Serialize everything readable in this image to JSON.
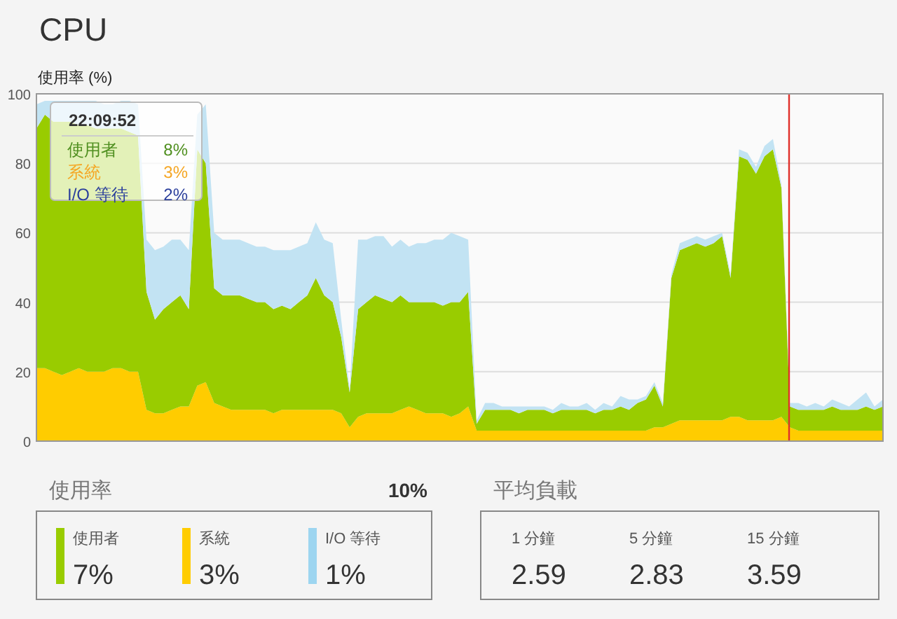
{
  "chart_data": [
    {
      "type": "area",
      "title": "CPU",
      "ylabel": "使用率 (%)",
      "stacked": true,
      "ylim": [
        0,
        100
      ],
      "yticks": [
        0,
        20,
        40,
        60,
        80,
        100
      ],
      "grid": "y",
      "tick_labels": "y",
      "categories": [
        null,
        null,
        null,
        null,
        null,
        null,
        null,
        null,
        null,
        null,
        null,
        null,
        null,
        null,
        null,
        null,
        null,
        null,
        null,
        null,
        null,
        null,
        null,
        null,
        null,
        null,
        null,
        null,
        null,
        null,
        null,
        null,
        null,
        null,
        null,
        null,
        null,
        null,
        null,
        null,
        null,
        null,
        null,
        null,
        null,
        null,
        null,
        null,
        null,
        null,
        null,
        null,
        null,
        null,
        null,
        null,
        null,
        null,
        null,
        null,
        null,
        null,
        null,
        null,
        null,
        null,
        null,
        null,
        null,
        null,
        null,
        null,
        null,
        null,
        null,
        null,
        null,
        null,
        null,
        null,
        null,
        null,
        null,
        null,
        null,
        null,
        null,
        null,
        null,
        null,
        null,
        null,
        null,
        null,
        null,
        null,
        null,
        null,
        null,
        null,
        null
      ],
      "series": [
        {
          "color": "#ffcc00",
          "values": [
            21,
            21,
            20,
            19,
            20,
            21,
            20,
            20,
            20,
            21,
            21,
            20,
            20,
            9,
            8,
            8,
            9,
            10,
            10,
            16,
            17,
            11,
            10,
            9,
            9,
            9,
            9,
            9,
            8,
            9,
            9,
            9,
            9,
            9,
            9,
            9,
            8,
            4,
            7,
            8,
            8,
            8,
            8,
            9,
            10,
            9,
            8,
            8,
            8,
            7,
            8,
            10,
            3,
            3,
            3,
            3,
            3,
            3,
            3,
            3,
            3,
            3,
            3,
            3,
            3,
            3,
            3,
            3,
            3,
            3,
            3,
            3,
            3,
            4,
            4,
            5,
            6,
            6,
            6,
            6,
            6,
            6,
            7,
            7,
            6,
            6,
            6,
            6,
            7,
            4,
            3,
            3,
            3,
            3,
            3,
            3,
            3,
            3,
            3,
            3,
            3
          ]
        },
        {
          "color": "#99cc00",
          "values": [
            69,
            73,
            72,
            73,
            72,
            70,
            71,
            70,
            70,
            69,
            69,
            69,
            68,
            34,
            27,
            30,
            31,
            32,
            28,
            68,
            63,
            33,
            32,
            33,
            33,
            32,
            31,
            31,
            30,
            30,
            29,
            31,
            33,
            38,
            33,
            31,
            22,
            10,
            31,
            32,
            34,
            33,
            32,
            33,
            30,
            31,
            32,
            32,
            31,
            33,
            32,
            33,
            2,
            6,
            6,
            6,
            6,
            5,
            6,
            6,
            6,
            5,
            6,
            6,
            6,
            6,
            5,
            6,
            6,
            7,
            6,
            8,
            9,
            12,
            6,
            42,
            49,
            50,
            51,
            50,
            51,
            53,
            40,
            75,
            75,
            71,
            76,
            78,
            66,
            6,
            6,
            6,
            6,
            6,
            7,
            6,
            6,
            6,
            7,
            6,
            7
          ]
        },
        {
          "color": "#c2e3f3",
          "values": [
            7,
            4,
            6,
            6,
            6,
            7,
            7,
            8,
            7,
            7,
            8,
            9,
            9,
            15,
            20,
            18,
            18,
            16,
            17,
            10,
            17,
            16,
            16,
            16,
            16,
            16,
            16,
            16,
            17,
            16,
            17,
            16,
            15,
            16,
            16,
            17,
            5,
            1,
            20,
            18,
            17,
            18,
            16,
            16,
            16,
            17,
            17,
            18,
            19,
            20,
            19,
            15,
            1,
            2,
            2,
            1,
            1,
            2,
            1,
            1,
            1,
            1,
            2,
            1,
            1,
            2,
            1,
            2,
            1,
            3,
            3,
            1,
            1,
            1,
            1,
            1,
            2,
            2,
            2,
            2,
            2,
            1,
            1,
            2,
            2,
            2,
            3,
            3,
            1,
            1,
            2,
            1,
            2,
            1,
            2,
            2,
            1,
            3,
            4,
            1,
            2
          ]
        }
      ],
      "annotations": [
        "22:09:52",
        "使用者 8%",
        "系統 3%",
        "I/O 等待 2%"
      ]
    },
    {
      "type": "other",
      "title": "使用率",
      "annotations": [
        "10%"
      ],
      "categories": [
        "使用者",
        "系統",
        "I/O 等待"
      ],
      "value_labels": [
        "7%",
        "3%",
        "1%"
      ],
      "colors": [
        "#99cc00",
        "#ffcc00",
        "#9dd5f0"
      ]
    },
    {
      "type": "other",
      "title": "平均負載",
      "categories": [
        "1 分鐘",
        "5 分鐘",
        "15 分鐘"
      ],
      "values": [
        2.59,
        2.83,
        3.59
      ],
      "data_labels": true
    }
  ]
}
